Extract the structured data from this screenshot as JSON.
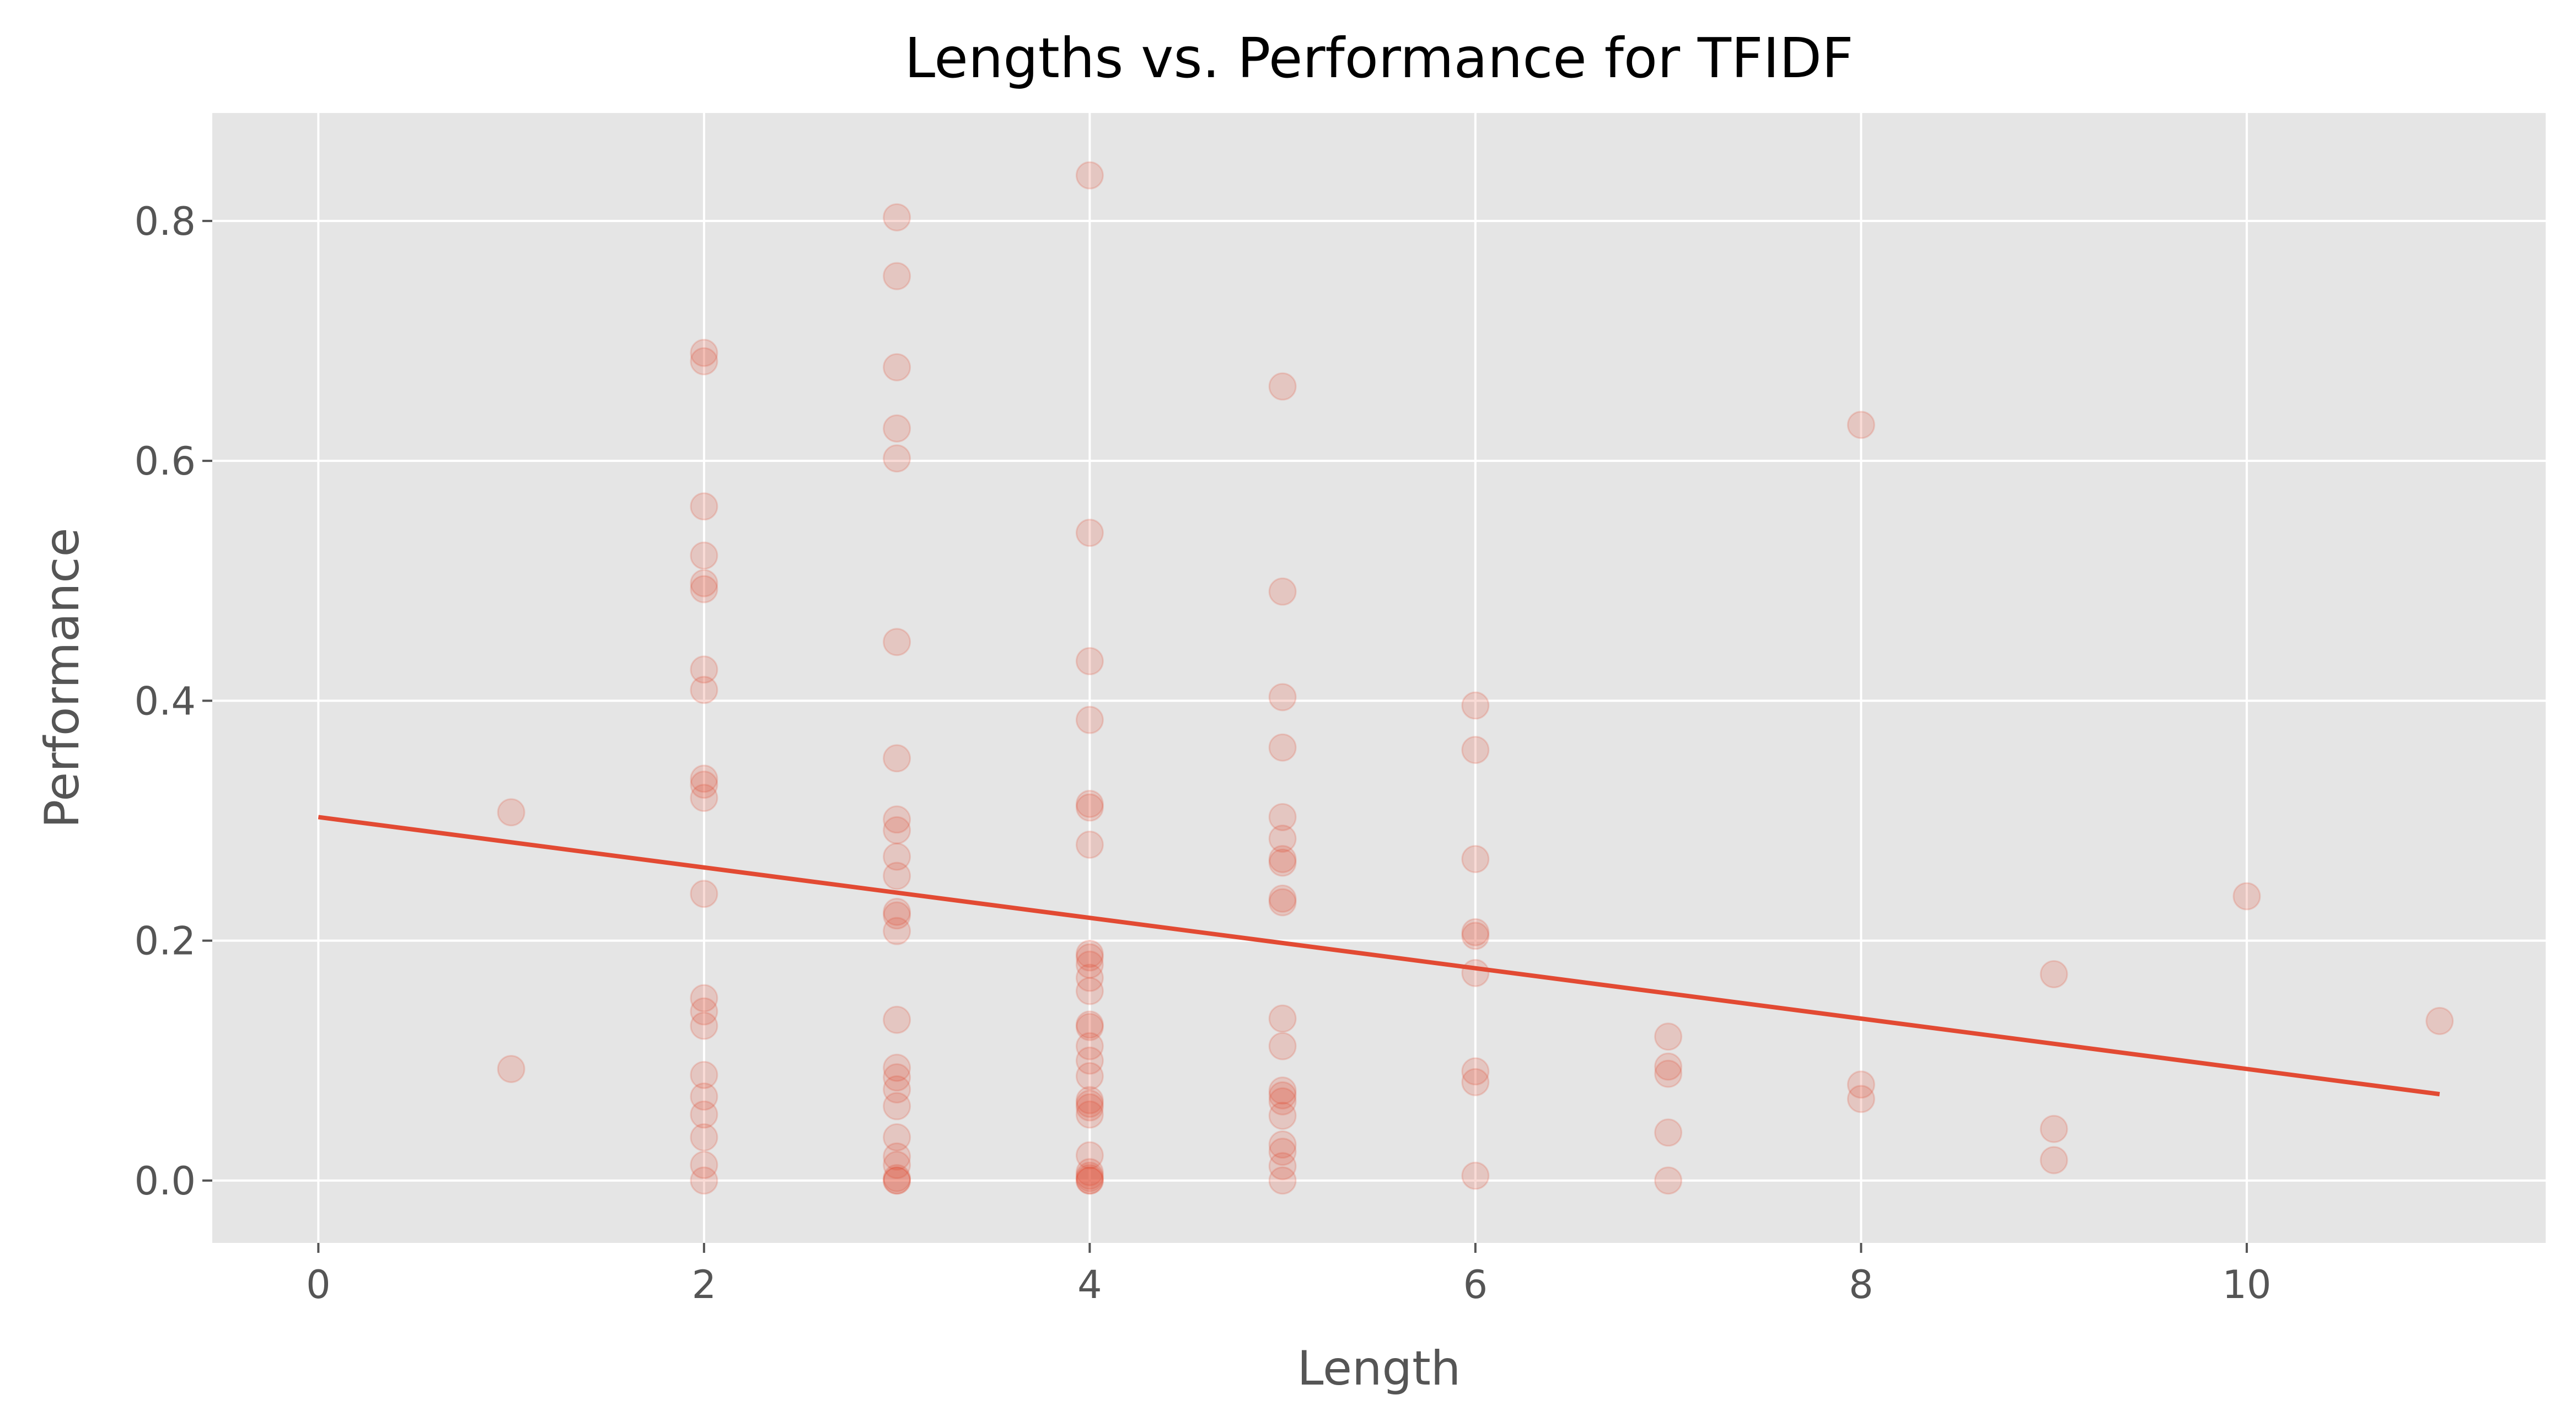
{
  "colors": {
    "plot_background": "#E5E5E5",
    "accent": "#E24A33",
    "grid": "#FFFFFF",
    "text": "#555555"
  },
  "chart_data": {
    "type": "scatter",
    "title": "Lengths vs. Performance for TFIDF",
    "xlabel": "Length",
    "ylabel": "Performance",
    "xlim": [
      -0.55,
      11.55
    ],
    "ylim": [
      -0.052,
      0.89
    ],
    "xticks": [
      0,
      2,
      4,
      6,
      8,
      10
    ],
    "yticks": [
      0.0,
      0.2,
      0.4,
      0.6,
      0.8
    ],
    "xtick_labels": [
      "0",
      "2",
      "4",
      "6",
      "8",
      "10"
    ],
    "ytick_labels": [
      "0.0",
      "0.2",
      "0.4",
      "0.6",
      "0.8"
    ],
    "grid": true,
    "marker_alpha": 0.2,
    "trendline": {
      "x": [
        0,
        11
      ],
      "y": [
        0.303,
        0.072
      ]
    },
    "points": [
      [
        1,
        0.307
      ],
      [
        1,
        0.093
      ],
      [
        2,
        0.69
      ],
      [
        2,
        0.683
      ],
      [
        2,
        0.562
      ],
      [
        2,
        0.521
      ],
      [
        2,
        0.498
      ],
      [
        2,
        0.493
      ],
      [
        2,
        0.426
      ],
      [
        2,
        0.409
      ],
      [
        2,
        0.335
      ],
      [
        2,
        0.33
      ],
      [
        2,
        0.319
      ],
      [
        2,
        0.239
      ],
      [
        2,
        0.152
      ],
      [
        2,
        0.141
      ],
      [
        2,
        0.129
      ],
      [
        2,
        0.088
      ],
      [
        2,
        0.07
      ],
      [
        2,
        0.055
      ],
      [
        2,
        0.036
      ],
      [
        2,
        0.013
      ],
      [
        2,
        0.0
      ],
      [
        3,
        0.803
      ],
      [
        3,
        0.754
      ],
      [
        3,
        0.678
      ],
      [
        3,
        0.627
      ],
      [
        3,
        0.602
      ],
      [
        3,
        0.449
      ],
      [
        3,
        0.352
      ],
      [
        3,
        0.301
      ],
      [
        3,
        0.292
      ],
      [
        3,
        0.27
      ],
      [
        3,
        0.254
      ],
      [
        3,
        0.224
      ],
      [
        3,
        0.221
      ],
      [
        3,
        0.208
      ],
      [
        3,
        0.134
      ],
      [
        3,
        0.094
      ],
      [
        3,
        0.086
      ],
      [
        3,
        0.076
      ],
      [
        3,
        0.062
      ],
      [
        3,
        0.036
      ],
      [
        3,
        0.02
      ],
      [
        3,
        0.013
      ],
      [
        3,
        0.002
      ],
      [
        3,
        0.0
      ],
      [
        3,
        0.0
      ],
      [
        4,
        0.838
      ],
      [
        4,
        0.54
      ],
      [
        4,
        0.433
      ],
      [
        4,
        0.384
      ],
      [
        4,
        0.314
      ],
      [
        4,
        0.311
      ],
      [
        4,
        0.28
      ],
      [
        4,
        0.189
      ],
      [
        4,
        0.186
      ],
      [
        4,
        0.18
      ],
      [
        4,
        0.169
      ],
      [
        4,
        0.158
      ],
      [
        4,
        0.13
      ],
      [
        4,
        0.128
      ],
      [
        4,
        0.112
      ],
      [
        4,
        0.1
      ],
      [
        4,
        0.087
      ],
      [
        4,
        0.067
      ],
      [
        4,
        0.064
      ],
      [
        4,
        0.061
      ],
      [
        4,
        0.055
      ],
      [
        4,
        0.021
      ],
      [
        4,
        0.007
      ],
      [
        4,
        0.004
      ],
      [
        4,
        0.002
      ],
      [
        4,
        0.0
      ],
      [
        4,
        0.0
      ],
      [
        5,
        0.662
      ],
      [
        5,
        0.491
      ],
      [
        5,
        0.403
      ],
      [
        5,
        0.361
      ],
      [
        5,
        0.303
      ],
      [
        5,
        0.285
      ],
      [
        5,
        0.268
      ],
      [
        5,
        0.265
      ],
      [
        5,
        0.235
      ],
      [
        5,
        0.232
      ],
      [
        5,
        0.135
      ],
      [
        5,
        0.112
      ],
      [
        5,
        0.075
      ],
      [
        5,
        0.071
      ],
      [
        5,
        0.066
      ],
      [
        5,
        0.054
      ],
      [
        5,
        0.03
      ],
      [
        5,
        0.024
      ],
      [
        5,
        0.012
      ],
      [
        5,
        0.0
      ],
      [
        6,
        0.396
      ],
      [
        6,
        0.359
      ],
      [
        6,
        0.268
      ],
      [
        6,
        0.207
      ],
      [
        6,
        0.204
      ],
      [
        6,
        0.173
      ],
      [
        6,
        0.091
      ],
      [
        6,
        0.082
      ],
      [
        6,
        0.004
      ],
      [
        7,
        0.12
      ],
      [
        7,
        0.095
      ],
      [
        7,
        0.089
      ],
      [
        7,
        0.04
      ],
      [
        7,
        0.0
      ],
      [
        8,
        0.63
      ],
      [
        8,
        0.08
      ],
      [
        8,
        0.068
      ],
      [
        9,
        0.172
      ],
      [
        9,
        0.043
      ],
      [
        9,
        0.017
      ],
      [
        10,
        0.237
      ],
      [
        11,
        0.133
      ]
    ]
  }
}
